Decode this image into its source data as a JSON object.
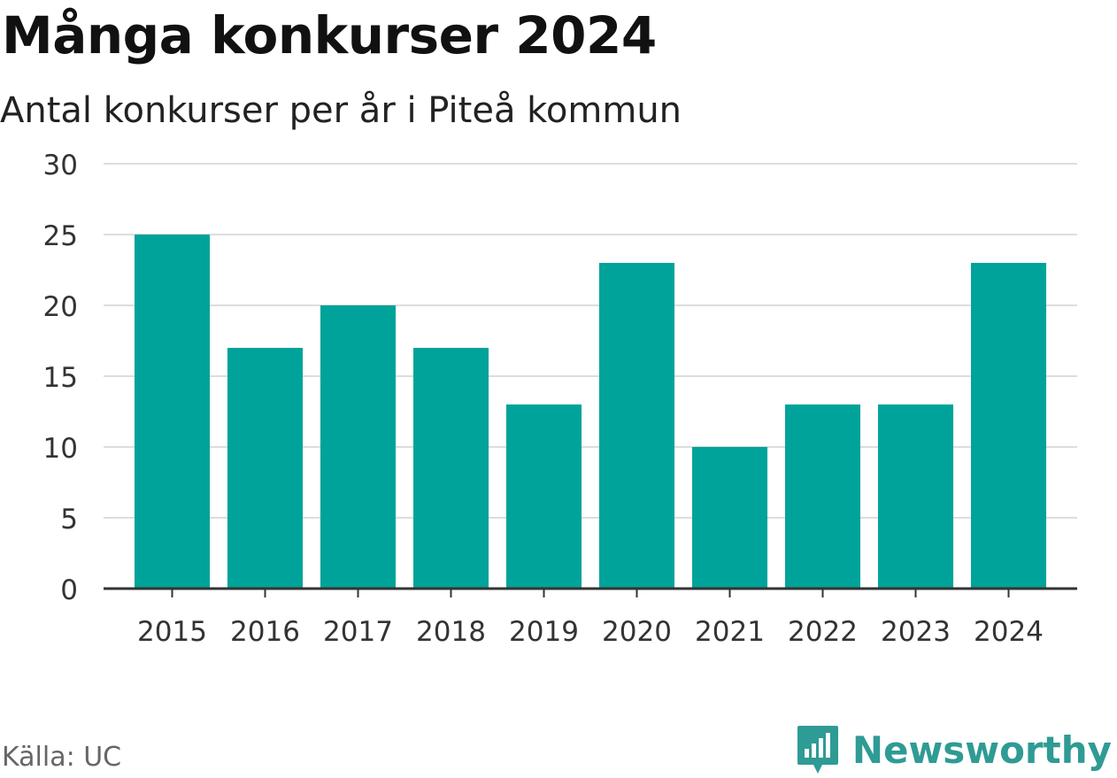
{
  "header": {
    "title": "Många konkurser 2024",
    "subtitle": "Antal konkurser per år i Piteå kommun"
  },
  "footer": {
    "source": "Källa: UC",
    "brand": "Newsworthy",
    "brand_icon": "newsworthy-logo-icon"
  },
  "colors": {
    "bar": "#00a39a",
    "grid": "#dddddd",
    "axis": "#333333",
    "brand": "#2e9b94"
  },
  "chart_data": {
    "type": "bar",
    "title": "Många konkurser 2024",
    "subtitle": "Antal konkurser per år i Piteå kommun",
    "categories": [
      "2015",
      "2016",
      "2017",
      "2018",
      "2019",
      "2020",
      "2021",
      "2022",
      "2023",
      "2024"
    ],
    "values": [
      25,
      17,
      20,
      17,
      13,
      23,
      10,
      13,
      13,
      23
    ],
    "ylim": [
      0,
      30
    ],
    "yticks": [
      0,
      5,
      10,
      15,
      20,
      25,
      30
    ],
    "grid": true,
    "legend": "none"
  }
}
